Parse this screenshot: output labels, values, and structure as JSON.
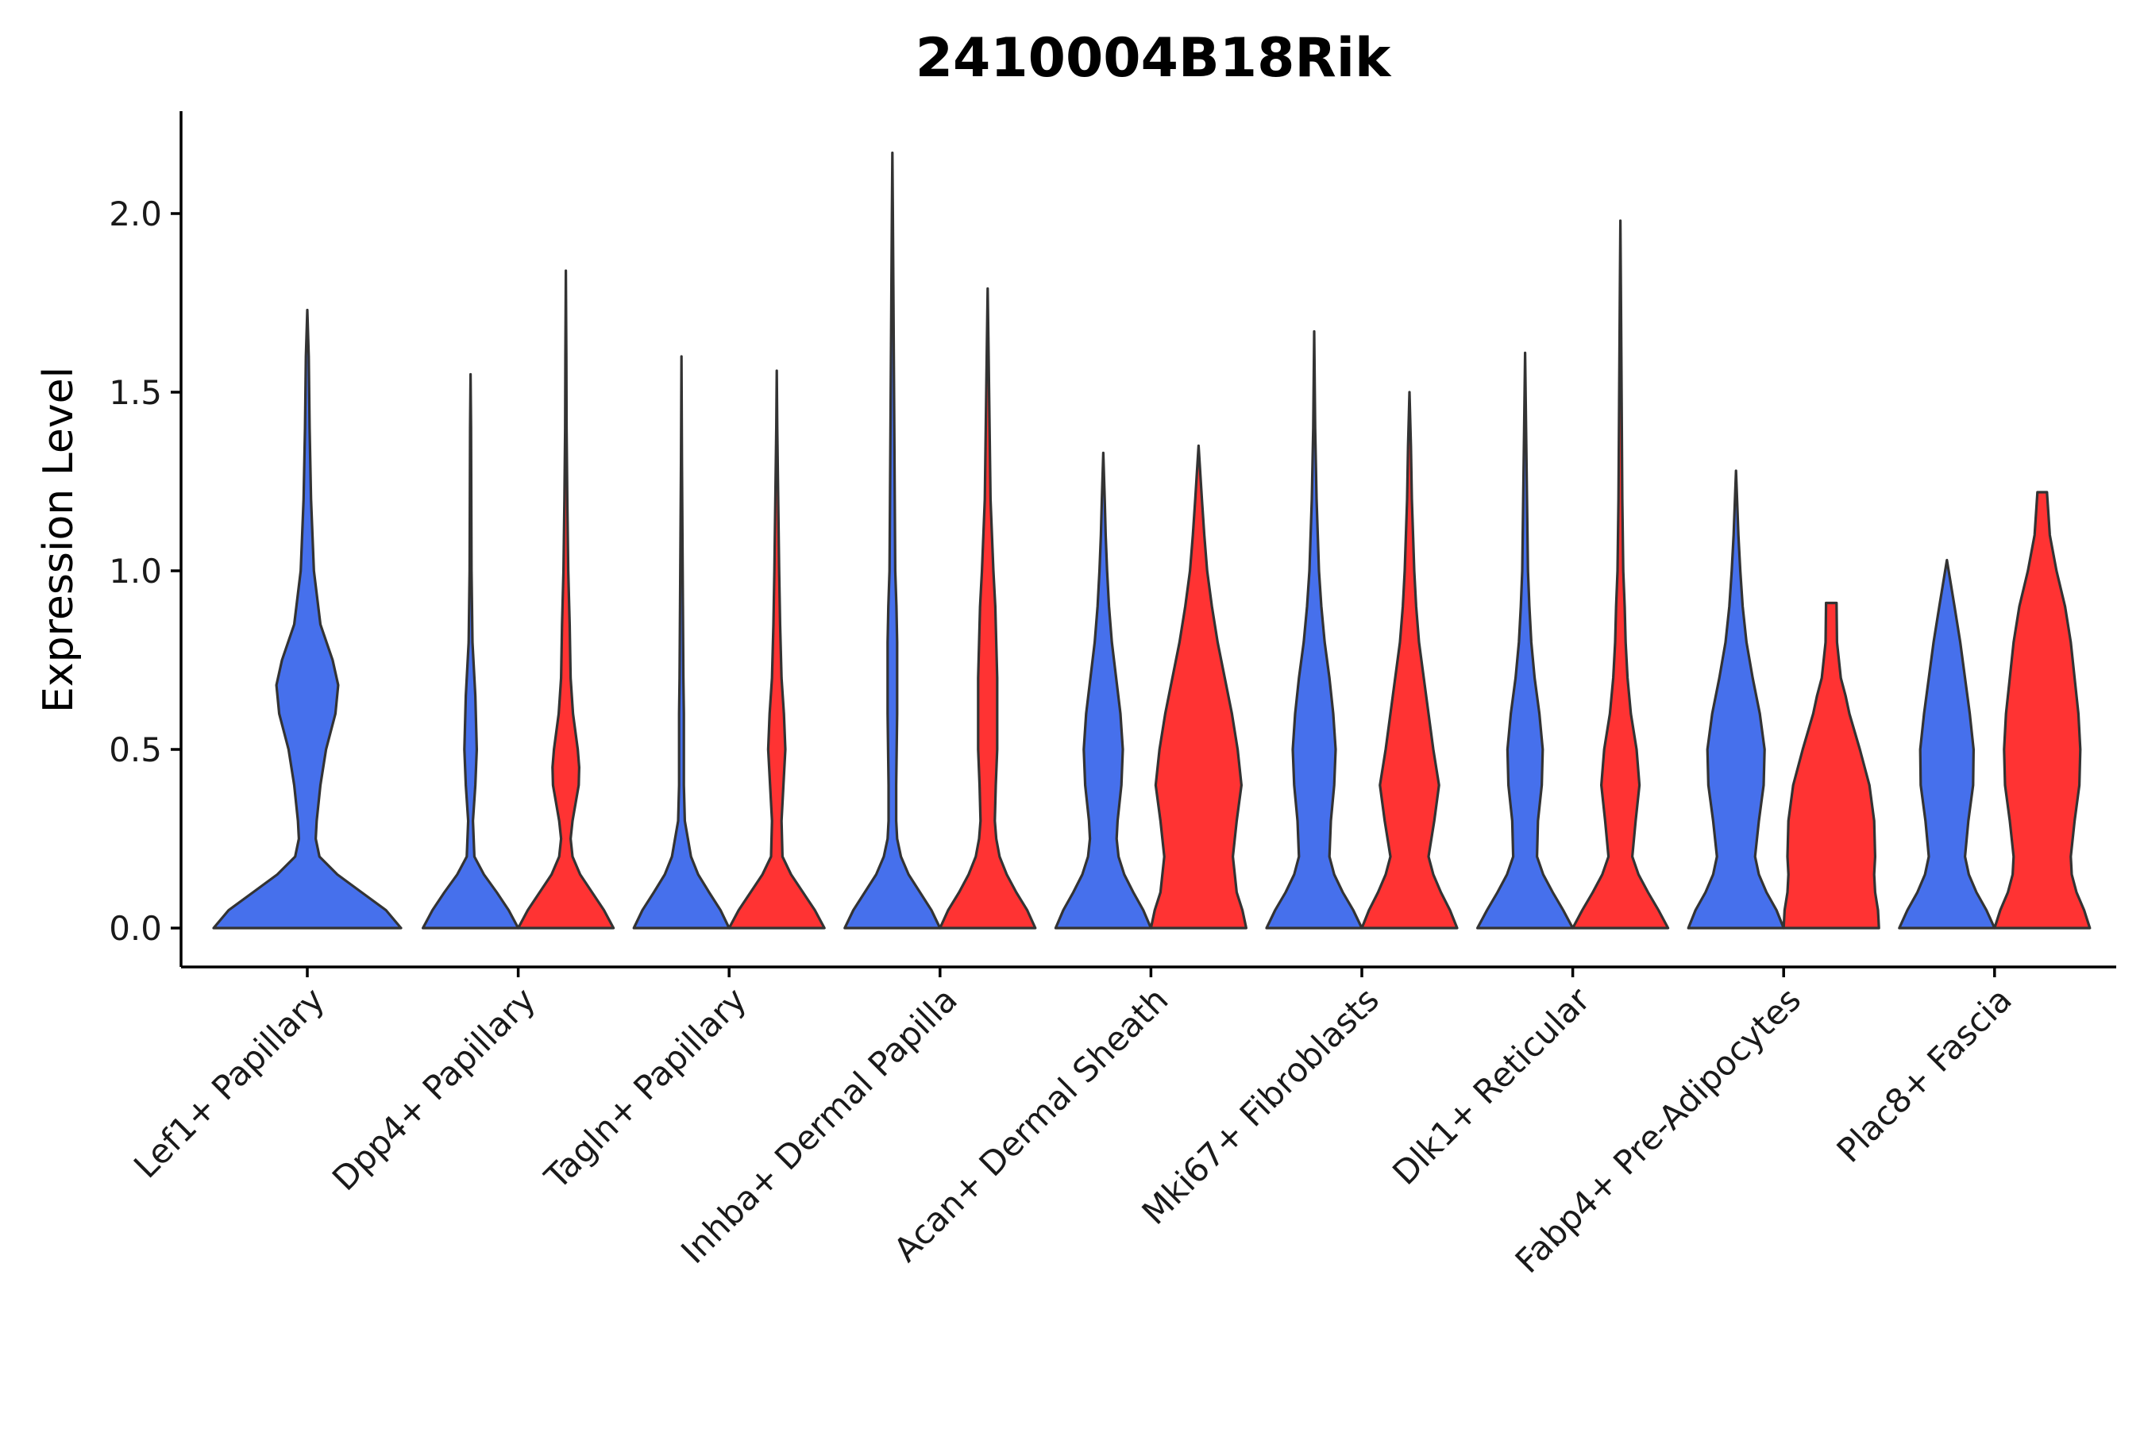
{
  "chart_data": {
    "type": "violin",
    "title": "2410004B18Rik",
    "xlabel": "",
    "ylabel": "Expression Level",
    "ylim": [
      -0.11,
      2.28
    ],
    "yticks": [
      0.0,
      0.5,
      1.0,
      1.5,
      2.0
    ],
    "ytick_labels": [
      "0.0",
      "0.5",
      "1.0",
      "1.5",
      "2.0"
    ],
    "grid": false,
    "legend": "none",
    "split": true,
    "colors": {
      "left": "#4670EC",
      "right": "#FF3333",
      "outline": "#333333"
    },
    "categories": [
      "Lef1+ Papillary",
      "Dpp4+ Papillary",
      "Tagln+ Papillary",
      "Inhba+ Dermal Papilla",
      "Acan+ Dermal Sheath",
      "Mki67+ Fibroblasts",
      "Dlk1+ Reticular",
      "Fabp4+ Pre-Adipocytes",
      "Plac8+ Fascia"
    ],
    "violins": [
      {
        "left": [
          [
            0,
            1.0
          ],
          [
            0.05,
            0.84
          ],
          [
            0.1,
            0.58
          ],
          [
            0.15,
            0.32
          ],
          [
            0.2,
            0.13
          ],
          [
            0.25,
            0.09
          ],
          [
            0.3,
            0.1
          ],
          [
            0.4,
            0.14
          ],
          [
            0.5,
            0.2
          ],
          [
            0.6,
            0.3
          ],
          [
            0.68,
            0.33
          ],
          [
            0.75,
            0.27
          ],
          [
            0.85,
            0.14
          ],
          [
            1.0,
            0.07
          ],
          [
            1.2,
            0.04
          ],
          [
            1.4,
            0.025
          ],
          [
            1.6,
            0.015
          ],
          [
            1.73,
            0.0
          ]
        ],
        "right": null
      },
      {
        "left": [
          [
            0,
            1.0
          ],
          [
            0.05,
            0.8
          ],
          [
            0.1,
            0.55
          ],
          [
            0.15,
            0.28
          ],
          [
            0.2,
            0.08
          ],
          [
            0.3,
            0.05
          ],
          [
            0.4,
            0.1
          ],
          [
            0.5,
            0.13
          ],
          [
            0.55,
            0.12
          ],
          [
            0.65,
            0.1
          ],
          [
            0.8,
            0.04
          ],
          [
            1.0,
            0.02
          ],
          [
            1.2,
            0.015
          ],
          [
            1.4,
            0.01
          ],
          [
            1.55,
            0.0
          ]
        ],
        "right": [
          [
            0,
            1.0
          ],
          [
            0.05,
            0.8
          ],
          [
            0.1,
            0.55
          ],
          [
            0.15,
            0.3
          ],
          [
            0.2,
            0.14
          ],
          [
            0.25,
            0.1
          ],
          [
            0.3,
            0.14
          ],
          [
            0.4,
            0.27
          ],
          [
            0.45,
            0.28
          ],
          [
            0.5,
            0.25
          ],
          [
            0.6,
            0.15
          ],
          [
            0.7,
            0.1
          ],
          [
            0.85,
            0.08
          ],
          [
            1.0,
            0.05
          ],
          [
            1.2,
            0.03
          ],
          [
            1.4,
            0.015
          ],
          [
            1.6,
            0.01
          ],
          [
            1.84,
            0.0
          ]
        ]
      },
      {
        "left": [
          [
            0,
            1.0
          ],
          [
            0.05,
            0.82
          ],
          [
            0.1,
            0.58
          ],
          [
            0.15,
            0.35
          ],
          [
            0.2,
            0.2
          ],
          [
            0.3,
            0.07
          ],
          [
            0.4,
            0.05
          ],
          [
            0.5,
            0.05
          ],
          [
            0.6,
            0.05
          ],
          [
            0.7,
            0.04
          ],
          [
            0.9,
            0.03
          ],
          [
            1.1,
            0.02
          ],
          [
            1.3,
            0.01
          ],
          [
            1.6,
            0.0
          ]
        ],
        "right": [
          [
            0,
            1.0
          ],
          [
            0.05,
            0.8
          ],
          [
            0.1,
            0.55
          ],
          [
            0.15,
            0.3
          ],
          [
            0.2,
            0.12
          ],
          [
            0.3,
            0.1
          ],
          [
            0.4,
            0.14
          ],
          [
            0.5,
            0.18
          ],
          [
            0.6,
            0.15
          ],
          [
            0.7,
            0.1
          ],
          [
            0.85,
            0.07
          ],
          [
            1.0,
            0.05
          ],
          [
            1.2,
            0.03
          ],
          [
            1.4,
            0.01
          ],
          [
            1.56,
            0.0
          ]
        ]
      },
      {
        "left": [
          [
            0,
            1.0
          ],
          [
            0.05,
            0.82
          ],
          [
            0.1,
            0.58
          ],
          [
            0.15,
            0.34
          ],
          [
            0.2,
            0.18
          ],
          [
            0.25,
            0.1
          ],
          [
            0.3,
            0.08
          ],
          [
            0.4,
            0.08
          ],
          [
            0.5,
            0.09
          ],
          [
            0.6,
            0.1
          ],
          [
            0.7,
            0.1
          ],
          [
            0.8,
            0.1
          ],
          [
            0.9,
            0.085
          ],
          [
            1.0,
            0.06
          ],
          [
            1.2,
            0.05
          ],
          [
            1.4,
            0.04
          ],
          [
            1.6,
            0.03
          ],
          [
            1.8,
            0.02
          ],
          [
            2.0,
            0.01
          ],
          [
            2.17,
            0.0
          ]
        ],
        "right": [
          [
            0,
            1.0
          ],
          [
            0.05,
            0.83
          ],
          [
            0.1,
            0.6
          ],
          [
            0.15,
            0.4
          ],
          [
            0.2,
            0.25
          ],
          [
            0.25,
            0.18
          ],
          [
            0.3,
            0.15
          ],
          [
            0.4,
            0.17
          ],
          [
            0.5,
            0.2
          ],
          [
            0.6,
            0.2
          ],
          [
            0.7,
            0.2
          ],
          [
            0.8,
            0.18
          ],
          [
            0.9,
            0.16
          ],
          [
            1.0,
            0.12
          ],
          [
            1.2,
            0.06
          ],
          [
            1.4,
            0.04
          ],
          [
            1.6,
            0.02
          ],
          [
            1.79,
            0.0
          ]
        ]
      },
      {
        "left": [
          [
            0,
            1.0
          ],
          [
            0.05,
            0.84
          ],
          [
            0.1,
            0.63
          ],
          [
            0.15,
            0.44
          ],
          [
            0.2,
            0.32
          ],
          [
            0.25,
            0.28
          ],
          [
            0.3,
            0.3
          ],
          [
            0.4,
            0.38
          ],
          [
            0.5,
            0.41
          ],
          [
            0.6,
            0.36
          ],
          [
            0.7,
            0.27
          ],
          [
            0.8,
            0.18
          ],
          [
            0.9,
            0.12
          ],
          [
            1.0,
            0.08
          ],
          [
            1.1,
            0.05
          ],
          [
            1.2,
            0.03
          ],
          [
            1.33,
            0.0
          ]
        ],
        "right": [
          [
            0,
            1.0
          ],
          [
            0.05,
            0.92
          ],
          [
            0.1,
            0.8
          ],
          [
            0.2,
            0.72
          ],
          [
            0.3,
            0.8
          ],
          [
            0.4,
            0.9
          ],
          [
            0.5,
            0.82
          ],
          [
            0.6,
            0.7
          ],
          [
            0.7,
            0.55
          ],
          [
            0.8,
            0.4
          ],
          [
            0.9,
            0.28
          ],
          [
            1.0,
            0.18
          ],
          [
            1.1,
            0.12
          ],
          [
            1.2,
            0.07
          ],
          [
            1.35,
            0.0
          ]
        ]
      },
      {
        "left": [
          [
            0,
            1.0
          ],
          [
            0.05,
            0.82
          ],
          [
            0.1,
            0.6
          ],
          [
            0.15,
            0.42
          ],
          [
            0.2,
            0.32
          ],
          [
            0.3,
            0.35
          ],
          [
            0.4,
            0.42
          ],
          [
            0.5,
            0.45
          ],
          [
            0.6,
            0.4
          ],
          [
            0.7,
            0.32
          ],
          [
            0.8,
            0.22
          ],
          [
            0.9,
            0.15
          ],
          [
            1.0,
            0.1
          ],
          [
            1.2,
            0.05
          ],
          [
            1.4,
            0.02
          ],
          [
            1.67,
            0.0
          ]
        ],
        "right": [
          [
            0,
            1.0
          ],
          [
            0.05,
            0.85
          ],
          [
            0.1,
            0.66
          ],
          [
            0.15,
            0.5
          ],
          [
            0.2,
            0.4
          ],
          [
            0.3,
            0.52
          ],
          [
            0.4,
            0.62
          ],
          [
            0.5,
            0.5
          ],
          [
            0.6,
            0.4
          ],
          [
            0.7,
            0.3
          ],
          [
            0.8,
            0.2
          ],
          [
            0.9,
            0.14
          ],
          [
            1.0,
            0.1
          ],
          [
            1.2,
            0.05
          ],
          [
            1.35,
            0.03
          ],
          [
            1.5,
            0.0
          ]
        ]
      },
      {
        "left": [
          [
            0,
            1.0
          ],
          [
            0.05,
            0.8
          ],
          [
            0.1,
            0.58
          ],
          [
            0.15,
            0.38
          ],
          [
            0.2,
            0.25
          ],
          [
            0.3,
            0.27
          ],
          [
            0.4,
            0.35
          ],
          [
            0.5,
            0.37
          ],
          [
            0.6,
            0.3
          ],
          [
            0.7,
            0.2
          ],
          [
            0.8,
            0.13
          ],
          [
            0.9,
            0.09
          ],
          [
            1.0,
            0.06
          ],
          [
            1.2,
            0.04
          ],
          [
            1.4,
            0.02
          ],
          [
            1.61,
            0.0
          ]
        ],
        "right": [
          [
            0,
            1.0
          ],
          [
            0.05,
            0.8
          ],
          [
            0.1,
            0.58
          ],
          [
            0.15,
            0.38
          ],
          [
            0.2,
            0.25
          ],
          [
            0.3,
            0.32
          ],
          [
            0.4,
            0.4
          ],
          [
            0.5,
            0.34
          ],
          [
            0.6,
            0.22
          ],
          [
            0.7,
            0.15
          ],
          [
            0.8,
            0.11
          ],
          [
            0.9,
            0.09
          ],
          [
            1.0,
            0.06
          ],
          [
            1.2,
            0.04
          ],
          [
            1.4,
            0.03
          ],
          [
            1.6,
            0.02
          ],
          [
            1.8,
            0.01
          ],
          [
            1.98,
            0.0
          ]
        ]
      },
      {
        "left": [
          [
            0,
            1.0
          ],
          [
            0.05,
            0.85
          ],
          [
            0.1,
            0.64
          ],
          [
            0.15,
            0.48
          ],
          [
            0.2,
            0.4
          ],
          [
            0.3,
            0.48
          ],
          [
            0.4,
            0.58
          ],
          [
            0.5,
            0.6
          ],
          [
            0.6,
            0.5
          ],
          [
            0.7,
            0.35
          ],
          [
            0.8,
            0.22
          ],
          [
            0.9,
            0.14
          ],
          [
            1.0,
            0.09
          ],
          [
            1.1,
            0.05
          ],
          [
            1.28,
            0.0
          ]
        ],
        "right": [
          [
            0,
            1.0
          ],
          [
            0.05,
            0.98
          ],
          [
            0.1,
            0.92
          ],
          [
            0.15,
            0.9
          ],
          [
            0.2,
            0.92
          ],
          [
            0.3,
            0.9
          ],
          [
            0.4,
            0.8
          ],
          [
            0.5,
            0.6
          ],
          [
            0.6,
            0.38
          ],
          [
            0.65,
            0.3
          ],
          [
            0.7,
            0.2
          ],
          [
            0.8,
            0.12
          ],
          [
            0.91,
            0.11
          ]
        ]
      },
      {
        "left": [
          [
            0,
            1.0
          ],
          [
            0.05,
            0.83
          ],
          [
            0.1,
            0.62
          ],
          [
            0.15,
            0.46
          ],
          [
            0.2,
            0.38
          ],
          [
            0.3,
            0.45
          ],
          [
            0.4,
            0.55
          ],
          [
            0.5,
            0.56
          ],
          [
            0.6,
            0.48
          ],
          [
            0.7,
            0.38
          ],
          [
            0.8,
            0.28
          ],
          [
            0.9,
            0.16
          ],
          [
            1.03,
            0.0
          ]
        ],
        "right": [
          [
            0,
            1.0
          ],
          [
            0.05,
            0.88
          ],
          [
            0.1,
            0.72
          ],
          [
            0.15,
            0.62
          ],
          [
            0.2,
            0.6
          ],
          [
            0.3,
            0.68
          ],
          [
            0.4,
            0.78
          ],
          [
            0.5,
            0.8
          ],
          [
            0.6,
            0.76
          ],
          [
            0.7,
            0.68
          ],
          [
            0.8,
            0.6
          ],
          [
            0.9,
            0.48
          ],
          [
            1.0,
            0.3
          ],
          [
            1.1,
            0.16
          ],
          [
            1.22,
            0.1
          ]
        ]
      }
    ]
  }
}
